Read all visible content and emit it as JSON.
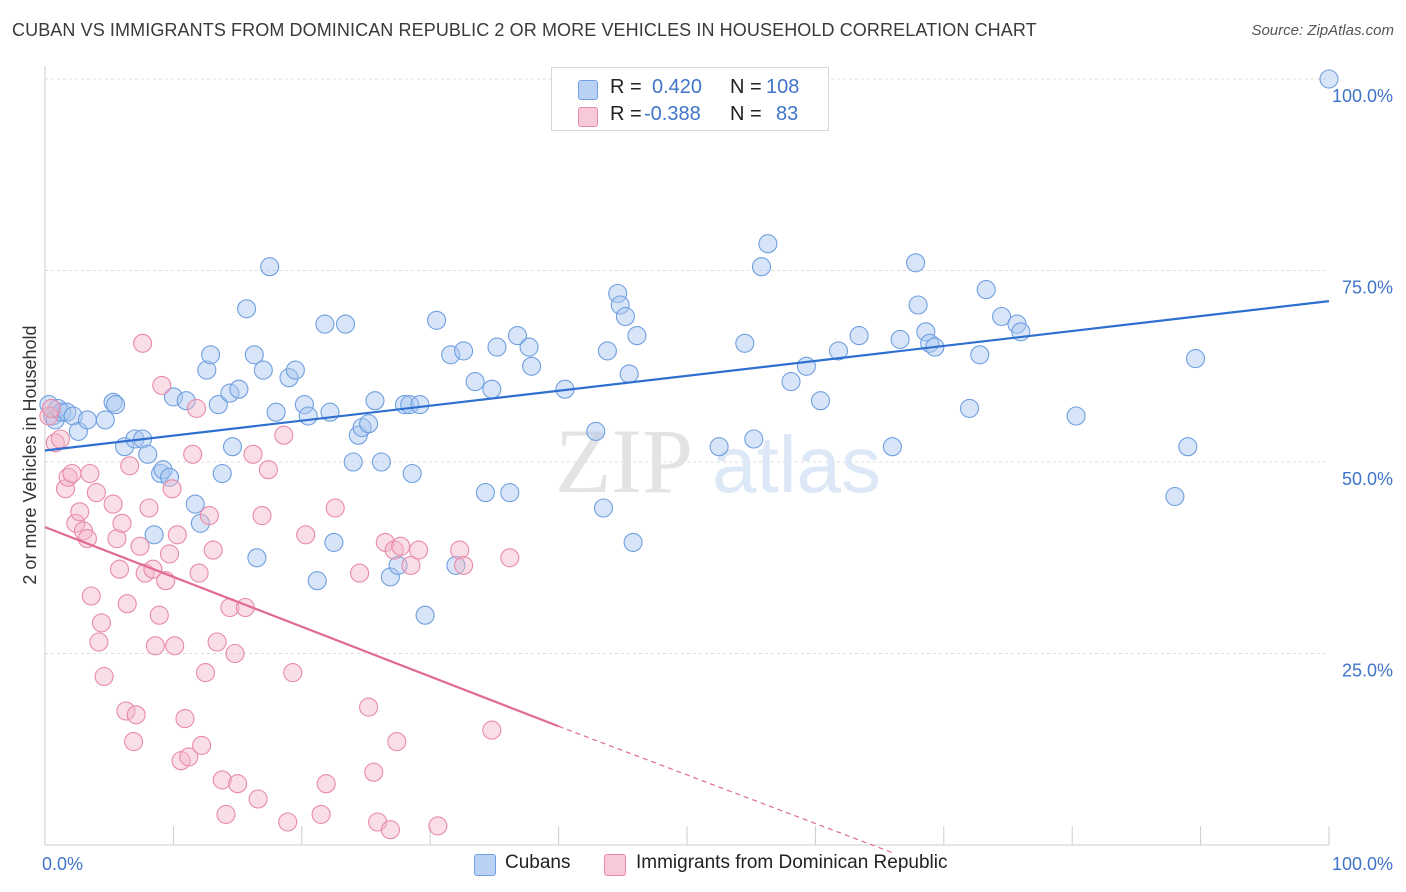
{
  "title": "CUBAN VS IMMIGRANTS FROM DOMINICAN REPUBLIC 2 OR MORE VEHICLES IN HOUSEHOLD CORRELATION CHART",
  "source": "Source: ZipAtlas.com",
  "watermark": {
    "zip": "ZIP",
    "atlas": "atlas"
  },
  "legend": {
    "rows": [
      {
        "r_label": "R = ",
        "r_value": "0.420",
        "n_label": "N = ",
        "n_value": "108",
        "color": "#a9c6f0"
      },
      {
        "r_label": "R = ",
        "r_value": "-0.388",
        "n_label": "N = ",
        "n_value": "83",
        "color": "#f5b5c8"
      }
    ]
  },
  "chart_data": {
    "type": "scatter",
    "title": "CUBAN VS IMMIGRANTS FROM DOMINICAN REPUBLIC 2 OR MORE VEHICLES IN HOUSEHOLD CORRELATION CHART",
    "xlabel": "",
    "ylabel": "2 or more Vehicles in Household",
    "xlim": [
      0,
      100
    ],
    "ylim": [
      0,
      100
    ],
    "x_ticks": [
      "0.0%",
      "100.0%"
    ],
    "y_ticks": [
      {
        "value": 100,
        "label": "100.0%"
      },
      {
        "value": 75,
        "label": "75.0%"
      },
      {
        "value": 50,
        "label": "50.0%"
      },
      {
        "value": 25,
        "label": "25.0%"
      }
    ],
    "grid": true,
    "legend_position": "top-center",
    "series": [
      {
        "name": "Cubans",
        "color": "#a9c6f0",
        "stroke": "#6f9fe0",
        "line_color": "#2f6fcf",
        "trend": {
          "x": [
            0,
            100
          ],
          "y": [
            51.5,
            71
          ]
        },
        "points": [
          [
            0.3,
            57.5
          ],
          [
            0.6,
            56
          ],
          [
            0.8,
            55.5
          ],
          [
            1,
            57
          ],
          [
            1.3,
            56.5
          ],
          [
            1.7,
            56.5
          ],
          [
            2.2,
            56
          ],
          [
            2.6,
            54
          ],
          [
            3.3,
            55.5
          ],
          [
            4.7,
            55.5
          ],
          [
            5.3,
            57.8
          ],
          [
            5.5,
            57.5
          ],
          [
            6.2,
            52
          ],
          [
            7,
            53
          ],
          [
            7.6,
            53
          ],
          [
            8,
            51
          ],
          [
            8.5,
            40.5
          ],
          [
            9,
            48.5
          ],
          [
            9.2,
            49
          ],
          [
            9.7,
            48
          ],
          [
            10,
            58.5
          ],
          [
            11,
            58
          ],
          [
            11.7,
            44.5
          ],
          [
            12.1,
            42
          ],
          [
            12.6,
            62
          ],
          [
            12.9,
            64
          ],
          [
            13.5,
            57.5
          ],
          [
            13.8,
            48.5
          ],
          [
            14.4,
            59
          ],
          [
            14.6,
            52
          ],
          [
            15.1,
            59.5
          ],
          [
            15.7,
            70
          ],
          [
            16.3,
            64
          ],
          [
            16.5,
            37.5
          ],
          [
            17,
            62
          ],
          [
            17.5,
            75.5
          ],
          [
            18,
            56.5
          ],
          [
            19,
            61
          ],
          [
            19.5,
            62
          ],
          [
            20.2,
            57.5
          ],
          [
            20.5,
            56
          ],
          [
            21.2,
            34.5
          ],
          [
            21.8,
            68
          ],
          [
            22.2,
            56.5
          ],
          [
            22.5,
            39.5
          ],
          [
            23.4,
            68
          ],
          [
            24,
            50
          ],
          [
            24.4,
            53.5
          ],
          [
            24.7,
            54.5
          ],
          [
            25.2,
            55
          ],
          [
            25.7,
            58
          ],
          [
            26.2,
            50
          ],
          [
            26.9,
            35
          ],
          [
            27.5,
            36.5
          ],
          [
            28,
            57.5
          ],
          [
            28.4,
            57.5
          ],
          [
            28.6,
            48.5
          ],
          [
            29.2,
            57.5
          ],
          [
            29.6,
            30
          ],
          [
            30.5,
            68.5
          ],
          [
            31.6,
            64
          ],
          [
            32,
            36.5
          ],
          [
            32.6,
            64.5
          ],
          [
            33.5,
            60.5
          ],
          [
            34.3,
            46
          ],
          [
            34.8,
            59.5
          ],
          [
            35.2,
            65
          ],
          [
            36.2,
            46
          ],
          [
            36.8,
            66.5
          ],
          [
            37.7,
            65
          ],
          [
            37.9,
            62.5
          ],
          [
            40.5,
            59.5
          ],
          [
            42.9,
            54
          ],
          [
            43.5,
            44
          ],
          [
            43.8,
            64.5
          ],
          [
            44.6,
            72
          ],
          [
            44.8,
            70.5
          ],
          [
            45.2,
            69
          ],
          [
            45.5,
            61.5
          ],
          [
            45.8,
            39.5
          ],
          [
            46.1,
            66.5
          ],
          [
            52.5,
            52
          ],
          [
            54.5,
            65.5
          ],
          [
            55.2,
            53
          ],
          [
            55.8,
            75.5
          ],
          [
            56.3,
            78.5
          ],
          [
            58.1,
            60.5
          ],
          [
            59.3,
            62.5
          ],
          [
            60.4,
            58
          ],
          [
            61.8,
            64.5
          ],
          [
            63.4,
            66.5
          ],
          [
            66,
            52
          ],
          [
            66.6,
            66
          ],
          [
            67.8,
            76
          ],
          [
            68,
            70.5
          ],
          [
            68.6,
            67
          ],
          [
            68.9,
            65.5
          ],
          [
            69.3,
            65
          ],
          [
            72,
            57
          ],
          [
            72.8,
            64
          ],
          [
            73.3,
            72.5
          ],
          [
            74.5,
            69
          ],
          [
            75.7,
            68
          ],
          [
            76,
            67
          ],
          [
            80.3,
            56
          ],
          [
            88,
            45.5
          ],
          [
            89,
            52
          ],
          [
            89.6,
            63.5
          ],
          [
            100,
            100
          ]
        ]
      },
      {
        "name": "Immigrants from Dominican Republic",
        "color": "#f5b5c8",
        "stroke": "#e88aa8",
        "line_color": "#e06a95",
        "trend": {
          "x": [
            0,
            40
          ],
          "y": [
            41.5,
            15.5
          ]
        },
        "trend_dashed": {
          "x": [
            40,
            66
          ],
          "y": [
            15.5,
            -1
          ]
        },
        "points": [
          [
            0.3,
            56
          ],
          [
            0.5,
            57
          ],
          [
            0.8,
            52.5
          ],
          [
            1.2,
            53
          ],
          [
            1.6,
            46.5
          ],
          [
            1.8,
            48
          ],
          [
            2.1,
            48.5
          ],
          [
            2.4,
            42
          ],
          [
            2.7,
            43.5
          ],
          [
            3,
            41
          ],
          [
            3.3,
            40
          ],
          [
            3.5,
            48.5
          ],
          [
            3.6,
            32.5
          ],
          [
            4,
            46
          ],
          [
            4.2,
            26.5
          ],
          [
            4.4,
            29
          ],
          [
            4.6,
            22
          ],
          [
            5.3,
            44.5
          ],
          [
            5.6,
            40
          ],
          [
            5.8,
            36
          ],
          [
            6,
            42
          ],
          [
            6.3,
            17.5
          ],
          [
            6.4,
            31.5
          ],
          [
            6.6,
            49.5
          ],
          [
            6.9,
            13.5
          ],
          [
            7.1,
            17
          ],
          [
            7.4,
            39
          ],
          [
            7.6,
            65.5
          ],
          [
            7.8,
            35.5
          ],
          [
            8.1,
            44
          ],
          [
            8.4,
            36
          ],
          [
            8.6,
            26
          ],
          [
            8.9,
            30
          ],
          [
            9.1,
            60
          ],
          [
            9.4,
            34.5
          ],
          [
            9.7,
            38
          ],
          [
            9.9,
            46.5
          ],
          [
            10.1,
            26
          ],
          [
            10.3,
            40.5
          ],
          [
            10.6,
            11
          ],
          [
            10.9,
            16.5
          ],
          [
            11.2,
            11.5
          ],
          [
            11.5,
            51
          ],
          [
            11.8,
            57
          ],
          [
            12,
            35.5
          ],
          [
            12.2,
            13
          ],
          [
            12.5,
            22.5
          ],
          [
            12.8,
            43
          ],
          [
            13.1,
            38.5
          ],
          [
            13.4,
            26.5
          ],
          [
            13.8,
            8.5
          ],
          [
            14.1,
            4
          ],
          [
            14.4,
            31
          ],
          [
            14.8,
            25
          ],
          [
            15,
            8
          ],
          [
            15.6,
            31
          ],
          [
            16.2,
            51
          ],
          [
            16.6,
            6
          ],
          [
            16.9,
            43
          ],
          [
            17.4,
            49
          ],
          [
            18.6,
            53.5
          ],
          [
            18.9,
            3
          ],
          [
            19.3,
            22.5
          ],
          [
            20.3,
            40.5
          ],
          [
            21.5,
            4
          ],
          [
            21.9,
            8
          ],
          [
            22.6,
            44
          ],
          [
            24.5,
            35.5
          ],
          [
            25.2,
            18
          ],
          [
            25.6,
            9.5
          ],
          [
            25.9,
            3
          ],
          [
            26.5,
            39.5
          ],
          [
            26.9,
            2
          ],
          [
            27.2,
            38.5
          ],
          [
            27.4,
            13.5
          ],
          [
            27.7,
            39
          ],
          [
            28.5,
            36.5
          ],
          [
            29.1,
            38.5
          ],
          [
            30.6,
            2.5
          ],
          [
            32.3,
            38.5
          ],
          [
            32.6,
            36.5
          ],
          [
            34.8,
            15
          ],
          [
            36.2,
            37.5
          ]
        ]
      }
    ]
  }
}
